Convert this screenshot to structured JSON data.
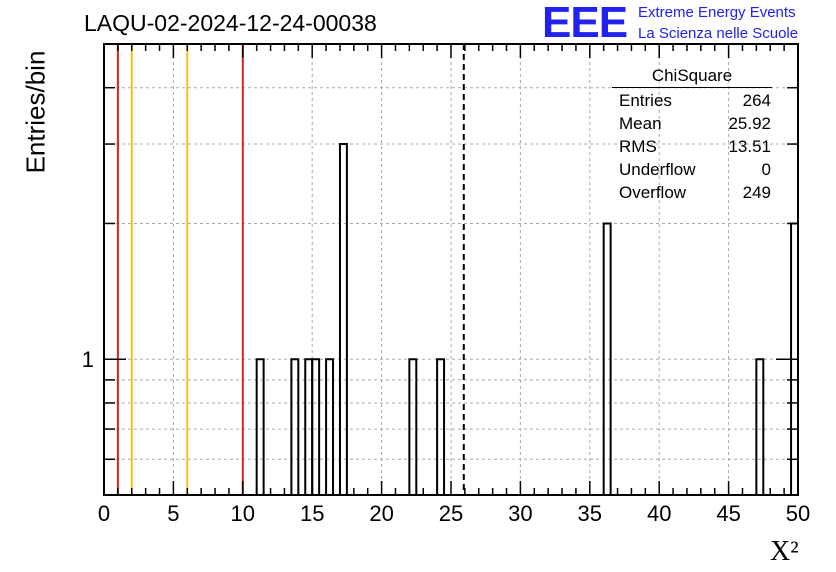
{
  "header": {
    "title": "LAQU-02-2024-12-24-00038",
    "logo_text": "EEE",
    "logo_line1": "Extreme Energy Events",
    "logo_line2": "La Scienza nelle Scuole"
  },
  "stats_box": {
    "title": "ChiSquare",
    "rows": [
      {
        "label": "Entries",
        "value": "264"
      },
      {
        "label": "Mean",
        "value": "25.92"
      },
      {
        "label": "RMS",
        "value": "13.51"
      },
      {
        "label": "Underflow",
        "value": "0"
      },
      {
        "label": "Overflow",
        "value": "249"
      }
    ]
  },
  "colors": {
    "red_line": "#dd2222",
    "yellow_line": "#f2c020",
    "grid": "#aaaaaa",
    "logo": "#2222ee"
  },
  "chart_data": {
    "type": "bar",
    "title": "LAQU-02-2024-12-24-00038",
    "xlabel": "X²",
    "ylabel": "Entries/bin",
    "xlim": [
      0,
      50
    ],
    "ylim_log": [
      0.5,
      5
    ],
    "log_y": true,
    "grid": true,
    "bin_width": 0.5,
    "x_ticks": [
      "0",
      "5",
      "10",
      "15",
      "20",
      "25",
      "30",
      "35",
      "40",
      "45",
      "50"
    ],
    "y_ticks": [
      "1"
    ],
    "bins": [
      {
        "x": 11,
        "y": 1
      },
      {
        "x": 13.5,
        "y": 1
      },
      {
        "x": 14.5,
        "y": 1
      },
      {
        "x": 15,
        "y": 1
      },
      {
        "x": 16,
        "y": 1
      },
      {
        "x": 17,
        "y": 3
      },
      {
        "x": 22,
        "y": 1
      },
      {
        "x": 24,
        "y": 1
      },
      {
        "x": 36,
        "y": 2
      },
      {
        "x": 47,
        "y": 1
      },
      {
        "x": 49.5,
        "y": 2
      }
    ],
    "vertical_lines": [
      {
        "x": 1,
        "color": "red"
      },
      {
        "x": 2,
        "color": "yellow"
      },
      {
        "x": 6,
        "color": "yellow"
      },
      {
        "x": 10,
        "color": "red"
      },
      {
        "x": 25.92,
        "color": "black",
        "style": "dashed"
      }
    ]
  }
}
